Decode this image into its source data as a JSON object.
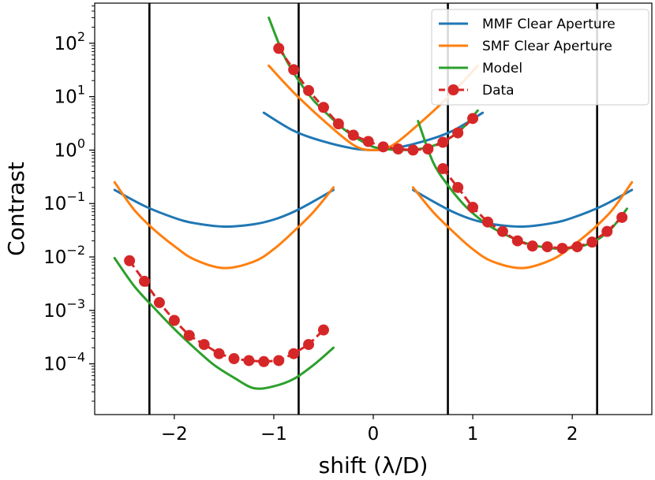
{
  "chart_data": {
    "type": "line",
    "title": "",
    "xlabel": "shift (λ/D)",
    "ylabel": "Contrast",
    "xlim": [
      -2.8,
      2.8
    ],
    "ylim_log10": [
      -4.95,
      2.75
    ],
    "yscale": "log",
    "grid": false,
    "legend_position": "top-right",
    "x_ticks": [
      {
        "value": -2,
        "label": "−2"
      },
      {
        "value": -1,
        "label": "−1"
      },
      {
        "value": 0,
        "label": "0"
      },
      {
        "value": 1,
        "label": "1"
      },
      {
        "value": 2,
        "label": "2"
      }
    ],
    "y_ticks": [
      {
        "exp": 2,
        "base": "10",
        "sup": "2"
      },
      {
        "exp": 1,
        "base": "10",
        "sup": "1"
      },
      {
        "exp": 0,
        "base": "10",
        "sup": "0"
      },
      {
        "exp": -1,
        "base": "10",
        "sup": "−1"
      },
      {
        "exp": -2,
        "base": "10",
        "sup": "−2"
      },
      {
        "exp": -3,
        "base": "10",
        "sup": "−3"
      },
      {
        "exp": -4,
        "base": "10",
        "sup": "−4"
      }
    ],
    "vertical_lines": [
      -2.25,
      -0.75,
      0.75,
      2.25
    ],
    "series": [
      {
        "name": "MMF Clear Aperture",
        "color": "#1f77b4",
        "style": "solid",
        "segments": [
          {
            "x": [
              -2.6,
              -2.3,
              -2.0,
              -1.8,
              -1.5,
              -1.2,
              -1.0,
              -0.8,
              -0.6,
              -0.4
            ],
            "y": [
              0.18,
              0.09,
              0.054,
              0.043,
              0.037,
              0.041,
              0.05,
              0.07,
              0.11,
              0.18
            ]
          },
          {
            "x": [
              -1.1,
              -0.8,
              -0.5,
              -0.2,
              0.0,
              0.2,
              0.5,
              0.8,
              1.1
            ],
            "y": [
              5.0,
              2.3,
              1.45,
              1.07,
              1.0,
              1.07,
              1.45,
              2.3,
              5.0
            ]
          },
          {
            "x": [
              0.4,
              0.6,
              0.8,
              1.0,
              1.2,
              1.5,
              1.8,
              2.0,
              2.3,
              2.6
            ],
            "y": [
              0.18,
              0.11,
              0.07,
              0.05,
              0.041,
              0.037,
              0.043,
              0.054,
              0.09,
              0.18
            ]
          }
        ]
      },
      {
        "name": "SMF Clear Aperture",
        "color": "#ff7f0e",
        "style": "solid",
        "segments": [
          {
            "x": [
              -2.6,
              -2.4,
              -2.2,
              -2.0,
              -1.8,
              -1.5,
              -1.2,
              -1.0,
              -0.8,
              -0.6,
              -0.4
            ],
            "y": [
              0.25,
              0.075,
              0.032,
              0.016,
              0.009,
              0.0062,
              0.0082,
              0.014,
              0.03,
              0.07,
              0.2
            ]
          },
          {
            "x": [
              -1.05,
              -0.8,
              -0.5,
              -0.2,
              0.0,
              0.2,
              0.5,
              0.8,
              1.05
            ],
            "y": [
              38,
              12,
              3.6,
              1.25,
              1.0,
              1.25,
              3.6,
              12,
              38
            ]
          },
          {
            "x": [
              0.4,
              0.6,
              0.8,
              1.0,
              1.2,
              1.5,
              1.8,
              2.0,
              2.2,
              2.4,
              2.6
            ],
            "y": [
              0.2,
              0.07,
              0.03,
              0.014,
              0.0082,
              0.0062,
              0.009,
              0.016,
              0.032,
              0.075,
              0.25
            ]
          }
        ]
      },
      {
        "name": "Model",
        "color": "#2ca02c",
        "style": "solid",
        "segments": [
          {
            "x": [
              -2.6,
              -2.4,
              -2.2,
              -2.0,
              -1.8,
              -1.6,
              -1.4,
              -1.2,
              -1.0,
              -0.8,
              -0.6,
              -0.4
            ],
            "y": [
              0.0095,
              0.0028,
              0.0011,
              0.00045,
              0.0002,
              9.5e-05,
              5.5e-05,
              3.5e-05,
              3.8e-05,
              5.2e-05,
              9.5e-05,
              0.0002
            ]
          },
          {
            "x": [
              -1.05,
              -0.9,
              -0.75,
              -0.6,
              -0.45,
              -0.3,
              -0.15,
              0.0,
              0.15,
              0.3,
              0.45,
              0.6,
              0.75,
              0.9,
              1.05
            ],
            "y": [
              300,
              60,
              20,
              8.5,
              4.5,
              2.5,
              1.6,
              1.15,
              1.03,
              1.0,
              1.04,
              1.2,
              1.6,
              2.6,
              5.5
            ]
          },
          {
            "x": [
              0.45,
              0.6,
              0.75,
              0.9,
              1.05,
              1.2,
              1.35,
              1.5,
              1.65,
              1.8,
              1.95,
              2.1,
              2.25,
              2.4,
              2.55
            ],
            "y": [
              3.5,
              0.6,
              0.22,
              0.1,
              0.055,
              0.035,
              0.025,
              0.019,
              0.016,
              0.0145,
              0.0145,
              0.016,
              0.021,
              0.035,
              0.08
            ]
          }
        ]
      },
      {
        "name": "Data",
        "color": "#d62728",
        "style": "dashed-markers",
        "segments": [
          {
            "x": [
              -2.45,
              -2.3,
              -2.15,
              -2.0,
              -1.85,
              -1.7,
              -1.55,
              -1.4,
              -1.25,
              -1.1,
              -0.95,
              -0.8,
              -0.65,
              -0.5
            ],
            "y": [
              0.0085,
              0.0035,
              0.0014,
              0.00065,
              0.00034,
              0.00023,
              0.000155,
              0.000125,
              0.000115,
              0.00011,
              0.000115,
              0.000155,
              0.00023,
              0.00043
            ]
          },
          {
            "x": [
              -0.95,
              -0.8,
              -0.65,
              -0.5,
              -0.35,
              -0.2,
              -0.05,
              0.1,
              0.25,
              0.4,
              0.55,
              0.7,
              0.85,
              1.0
            ],
            "y": [
              80,
              32,
              13,
              6.3,
              3.1,
              1.9,
              1.45,
              1.15,
              1.05,
              1.0,
              1.05,
              1.4,
              2.1,
              3.9
            ]
          },
          {
            "x": [
              0.7,
              0.85,
              1.0,
              1.15,
              1.3,
              1.45,
              1.6,
              1.75,
              1.9,
              2.05,
              2.2,
              2.35,
              2.5
            ],
            "y": [
              0.45,
              0.2,
              0.085,
              0.045,
              0.03,
              0.02,
              0.016,
              0.0155,
              0.0145,
              0.0155,
              0.019,
              0.03,
              0.055
            ]
          }
        ]
      }
    ]
  }
}
